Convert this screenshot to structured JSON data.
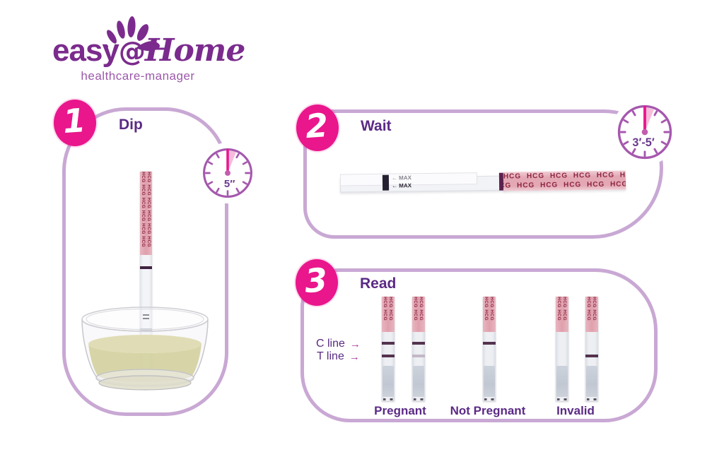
{
  "logo": {
    "easy": "easy",
    "at": "@",
    "home": "Home",
    "tagline": "healthcare-manager"
  },
  "steps": {
    "dip": {
      "number": "1",
      "label": "Dip",
      "timer": "5″"
    },
    "wait": {
      "number": "2",
      "label": "Wait",
      "timer": "3′-5′"
    },
    "read": {
      "number": "3",
      "label": "Read"
    }
  },
  "strip_graphics": {
    "hcg_text": "HCG",
    "max_row": "← MAX"
  },
  "read": {
    "c_line_label": "C line",
    "t_line_label": "T line",
    "arrow": "→",
    "results": [
      {
        "label": "Pregnant"
      },
      {
        "label": "Not Pregnant"
      },
      {
        "label": "Invalid"
      }
    ],
    "strips": [
      {
        "c": "strong",
        "t": "strong"
      },
      {
        "c": "strong",
        "t": "faint"
      },
      {
        "c": "strong",
        "t": "none"
      },
      {
        "c": "none",
        "t": "none"
      },
      {
        "c": "none",
        "t": "strong"
      }
    ]
  },
  "colors": {
    "accent_pink": "#e9168c",
    "panel_border": "#c9a8d4",
    "text_purple": "#5b2a85",
    "logo_purple": "#7b2b8d",
    "clock_purple": "#a558ae",
    "hcg_maroon": "#8e2440",
    "strip_pink": "#e3a8b4",
    "urine_yellow": "#d4d1a0"
  }
}
